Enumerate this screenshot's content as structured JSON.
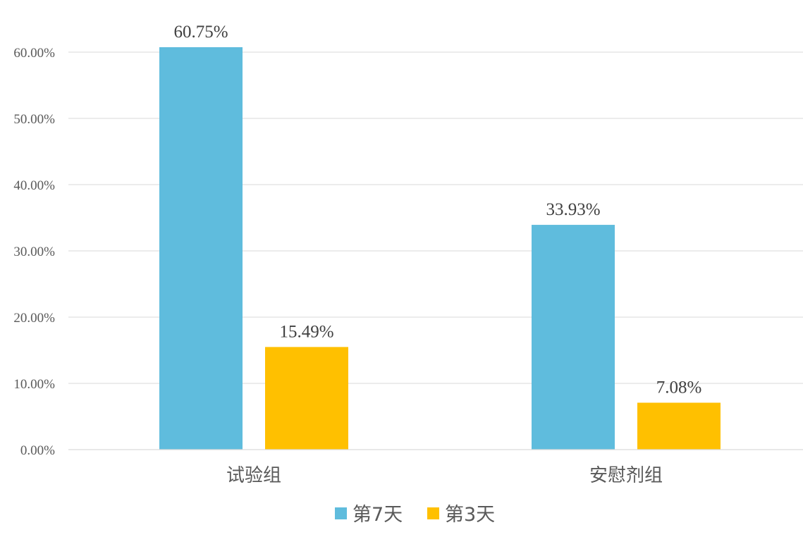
{
  "chart_data": {
    "type": "bar",
    "title": "",
    "xlabel": "",
    "ylabel": "",
    "categories": [
      "试验组",
      "安慰剂组"
    ],
    "series": [
      {
        "name": "第7天",
        "color": "#5fbcdd",
        "values": [
          60.75,
          33.93
        ],
        "labels": [
          "60.75%",
          "33.93%"
        ]
      },
      {
        "name": "第3天",
        "color": "#ffc000",
        "values": [
          15.49,
          7.08
        ],
        "labels": [
          "15.49%",
          "7.08%"
        ]
      }
    ],
    "ylim": [
      0,
      60
    ],
    "yticks": [
      0,
      10,
      20,
      30,
      40,
      50,
      60
    ],
    "ytick_labels": [
      "0.00%",
      "10.00%",
      "20.00%",
      "30.00%",
      "40.00%",
      "50.00%",
      "60.00%"
    ],
    "grid": true,
    "legend": "bottom-center"
  }
}
